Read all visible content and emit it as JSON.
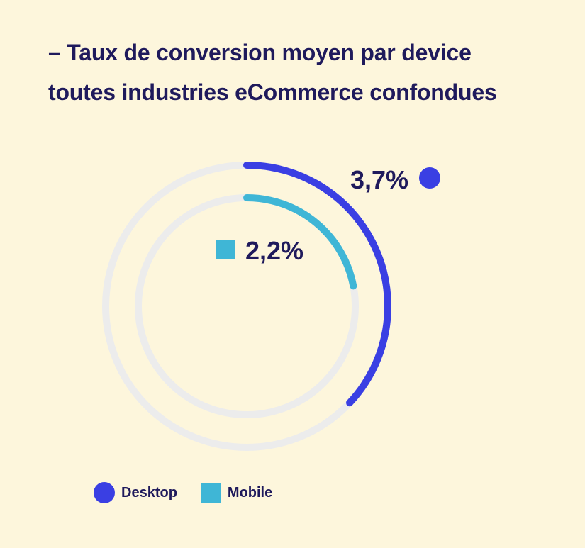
{
  "header": {
    "title_line1": "– Taux de conversion moyen par device",
    "title_line2": "toutes industries eCommerce confondues"
  },
  "chart_data": {
    "type": "radial-bar",
    "title": "– Taux de conversion moyen par device toutes industries eCommerce confondues",
    "unit": "%",
    "series": [
      {
        "name": "Desktop",
        "value": 3.7,
        "label": "3,7%",
        "marker": "circle",
        "color": "#3a3fe3"
      },
      {
        "name": "Mobile",
        "value": 2.2,
        "label": "2,2%",
        "marker": "square",
        "color": "#3fb6d6"
      }
    ],
    "track_color": "#ececec",
    "legend_placement": "bottom-left"
  },
  "legend": {
    "items": [
      {
        "label": "Desktop",
        "marker": "circle",
        "color": "#3a3fe3"
      },
      {
        "label": "Mobile",
        "marker": "square",
        "color": "#3fb6d6"
      }
    ]
  },
  "colors": {
    "background": "#fdf6dc",
    "text": "#1f1a5c"
  }
}
